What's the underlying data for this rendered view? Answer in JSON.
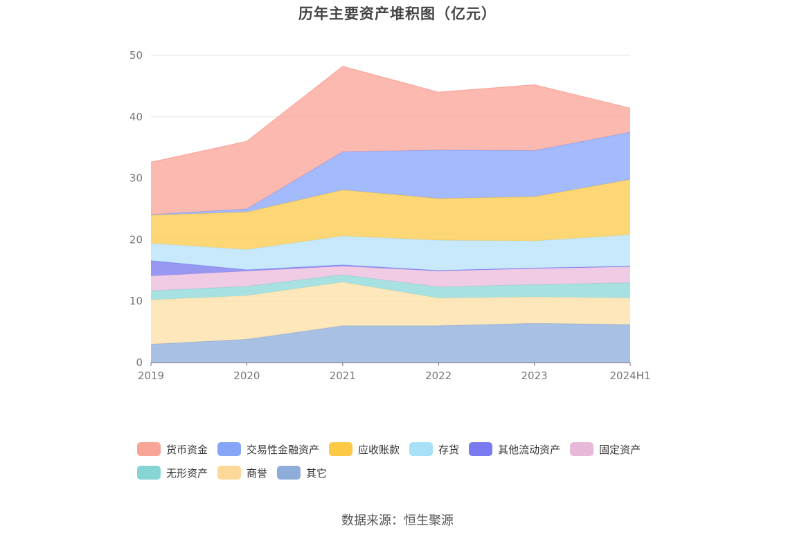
{
  "chart_data": {
    "type": "area",
    "stacked": true,
    "title": "历年主要资产堆积图（亿元）",
    "categories": [
      "2019",
      "2020",
      "2021",
      "2022",
      "2023",
      "2024H1"
    ],
    "ylim": [
      0,
      50
    ],
    "yticks": [
      0,
      10,
      20,
      30,
      40,
      50
    ],
    "grid": true,
    "legend_position": "bottom",
    "series": [
      {
        "name": "其它",
        "color": "#8eaedb",
        "values": [
          3.0,
          3.8,
          6.0,
          6.0,
          6.4,
          6.2
        ]
      },
      {
        "name": "商誉",
        "color": "#fde0a8",
        "values": [
          7.2,
          7.1,
          7.1,
          4.5,
          4.3,
          4.3
        ]
      },
      {
        "name": "无形资产",
        "color": "#8ed8d8",
        "values": [
          1.5,
          1.5,
          1.2,
          1.8,
          2.0,
          2.5
        ]
      },
      {
        "name": "固定资产",
        "color": "#ebbedd",
        "values": [
          2.4,
          2.5,
          1.4,
          2.6,
          2.6,
          2.6
        ]
      },
      {
        "name": "其他流动资产",
        "color": "#7b7bf0",
        "values": [
          2.5,
          0.2,
          0.2,
          0.1,
          0.1,
          0.1
        ]
      },
      {
        "name": "存货",
        "color": "#b7e3fa",
        "values": [
          2.8,
          3.3,
          4.7,
          4.9,
          4.4,
          5.1
        ]
      },
      {
        "name": "应收账款",
        "color": "#fdca4e",
        "values": [
          4.6,
          6.1,
          7.5,
          6.8,
          7.2,
          9.0
        ]
      },
      {
        "name": "交易性金融资产",
        "color": "#89a6fb",
        "values": [
          0.1,
          0.5,
          6.2,
          7.9,
          7.5,
          7.7
        ]
      },
      {
        "name": "货币资金",
        "color": "#fba59a",
        "values": [
          8.5,
          11.0,
          13.9,
          9.4,
          10.7,
          3.9
        ]
      }
    ]
  },
  "legend": [
    {
      "label": "货币资金",
      "color": "#f8a597"
    },
    {
      "label": "交易性金融资产",
      "color": "#87a5f7"
    },
    {
      "label": "应收账款",
      "color": "#fcc945"
    },
    {
      "label": "存货",
      "color": "#a8e0f8"
    },
    {
      "label": "其他流动资产",
      "color": "#7a7af0"
    },
    {
      "label": "固定资产",
      "color": "#e8b8d8"
    },
    {
      "label": "无形资产",
      "color": "#86d5d5"
    },
    {
      "label": "商誉",
      "color": "#fdd899"
    },
    {
      "label": "其它",
      "color": "#8eaddb"
    }
  ],
  "source_text": "数据来源：恒生聚源"
}
